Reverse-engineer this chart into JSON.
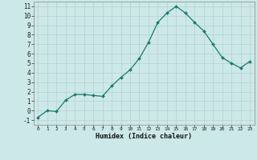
{
  "x": [
    0,
    1,
    2,
    3,
    4,
    5,
    6,
    7,
    8,
    9,
    10,
    11,
    12,
    13,
    14,
    15,
    16,
    17,
    18,
    19,
    20,
    21,
    22,
    23
  ],
  "y": [
    -0.7,
    0.0,
    -0.1,
    1.1,
    1.7,
    1.7,
    1.6,
    1.5,
    2.6,
    3.5,
    4.3,
    5.5,
    7.2,
    9.3,
    10.3,
    11.0,
    10.3,
    9.3,
    8.4,
    7.0,
    5.6,
    5.0,
    4.5,
    5.2
  ],
  "line_color": "#1a7a6e",
  "marker": "D",
  "marker_size": 2.0,
  "bg_color": "#cce8e8",
  "grid_color": "#b8d4d4",
  "xlabel": "Humidex (Indice chaleur)",
  "ylabel_ticks": [
    -1,
    0,
    1,
    2,
    3,
    4,
    5,
    6,
    7,
    8,
    9,
    10,
    11
  ],
  "xlim": [
    -0.5,
    23.5
  ],
  "ylim": [
    -1.5,
    11.5
  ]
}
